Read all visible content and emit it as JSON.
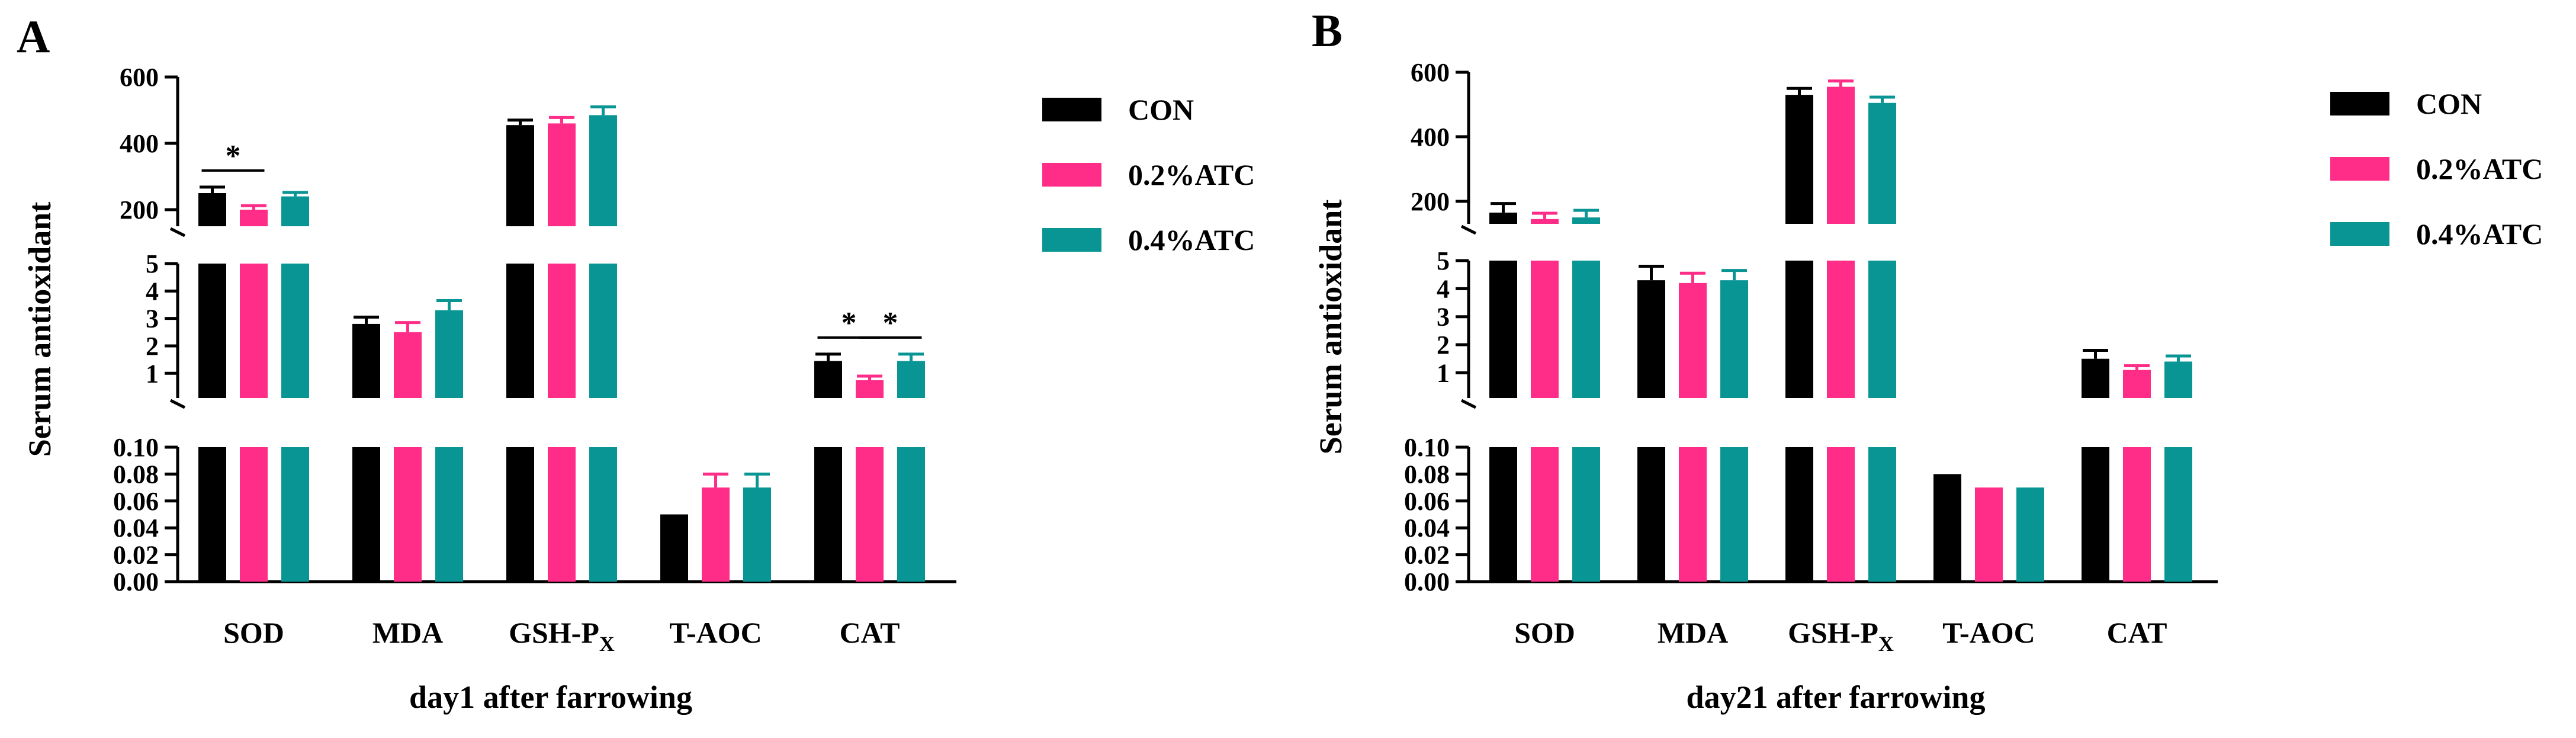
{
  "colors": {
    "CON": "#000000",
    "0.2%ATC": "#ff2d87",
    "0.4%ATC": "#0a9595",
    "axis": "#000000"
  },
  "chart_data": [
    {
      "panel": "A",
      "type": "bar",
      "xlabel": "day1 after farrowing",
      "ylabel": "Serum antioxidant",
      "categories": [
        "SOD",
        "MDA",
        "GSH-P",
        "T-AOC",
        "CAT"
      ],
      "category_subscripts": [
        "",
        "",
        "X",
        "",
        ""
      ],
      "series": [
        {
          "name": "CON",
          "values": [
            250,
            2.8,
            455,
            0.05,
            1.45
          ],
          "errors": [
            18,
            0.25,
            15,
            0.0,
            0.25
          ]
        },
        {
          "name": "0.2%ATC",
          "values": [
            200,
            2.5,
            460,
            0.07,
            0.75
          ],
          "errors": [
            12,
            0.35,
            18,
            0.01,
            0.15
          ]
        },
        {
          "name": "0.4%ATC",
          "values": [
            240,
            3.3,
            485,
            0.07,
            1.45
          ],
          "errors": [
            12,
            0.35,
            25,
            0.01,
            0.25
          ]
        }
      ],
      "y_segments": [
        {
          "range": [
            0,
            0.1
          ],
          "ticks": [
            "0.00",
            "0.02",
            "0.04",
            "0.06",
            "0.08",
            "0.10"
          ]
        },
        {
          "range": [
            0.1,
            5
          ],
          "ticks": [
            "1",
            "2",
            "3",
            "4",
            "5"
          ]
        },
        {
          "range": [
            150,
            600
          ],
          "ticks": [
            "200",
            "400",
            "600"
          ]
        }
      ],
      "legend": [
        "CON",
        "0.2%ATC",
        "0.4%ATC"
      ],
      "significance": [
        {
          "category": "SOD",
          "between": [
            "CON",
            "0.2%ATC"
          ],
          "label": "*"
        },
        {
          "category": "CAT",
          "between": [
            "CON",
            "0.2%ATC"
          ],
          "label": "*"
        },
        {
          "category": "CAT",
          "between": [
            "0.2%ATC",
            "0.4%ATC"
          ],
          "label": "*"
        }
      ]
    },
    {
      "panel": "B",
      "type": "bar",
      "xlabel": "day21 after farrowing",
      "ylabel": "Serum antioxidant",
      "categories": [
        "SOD",
        "MDA",
        "GSH-P",
        "T-AOC",
        "CAT"
      ],
      "category_subscripts": [
        "",
        "",
        "X",
        "",
        ""
      ],
      "series": [
        {
          "name": "CON",
          "values": [
            165,
            4.3,
            530,
            0.08,
            1.5
          ],
          "errors": [
            28,
            0.5,
            20,
            0.0,
            0.3
          ]
        },
        {
          "name": "0.2%ATC",
          "values": [
            145,
            4.2,
            555,
            0.07,
            1.1
          ],
          "errors": [
            18,
            0.35,
            18,
            0.0,
            0.15
          ]
        },
        {
          "name": "0.4%ATC",
          "values": [
            150,
            4.3,
            505,
            0.07,
            1.4
          ],
          "errors": [
            22,
            0.35,
            18,
            0.0,
            0.2
          ]
        }
      ],
      "y_segments": [
        {
          "range": [
            0,
            0.1
          ],
          "ticks": [
            "0.00",
            "0.02",
            "0.04",
            "0.06",
            "0.08",
            "0.10"
          ]
        },
        {
          "range": [
            0.1,
            5
          ],
          "ticks": [
            "1",
            "2",
            "3",
            "4",
            "5"
          ]
        },
        {
          "range": [
            130,
            600
          ],
          "ticks": [
            "200",
            "400",
            "600"
          ]
        }
      ],
      "legend": [
        "CON",
        "0.2%ATC",
        "0.4%ATC"
      ],
      "significance": []
    }
  ]
}
